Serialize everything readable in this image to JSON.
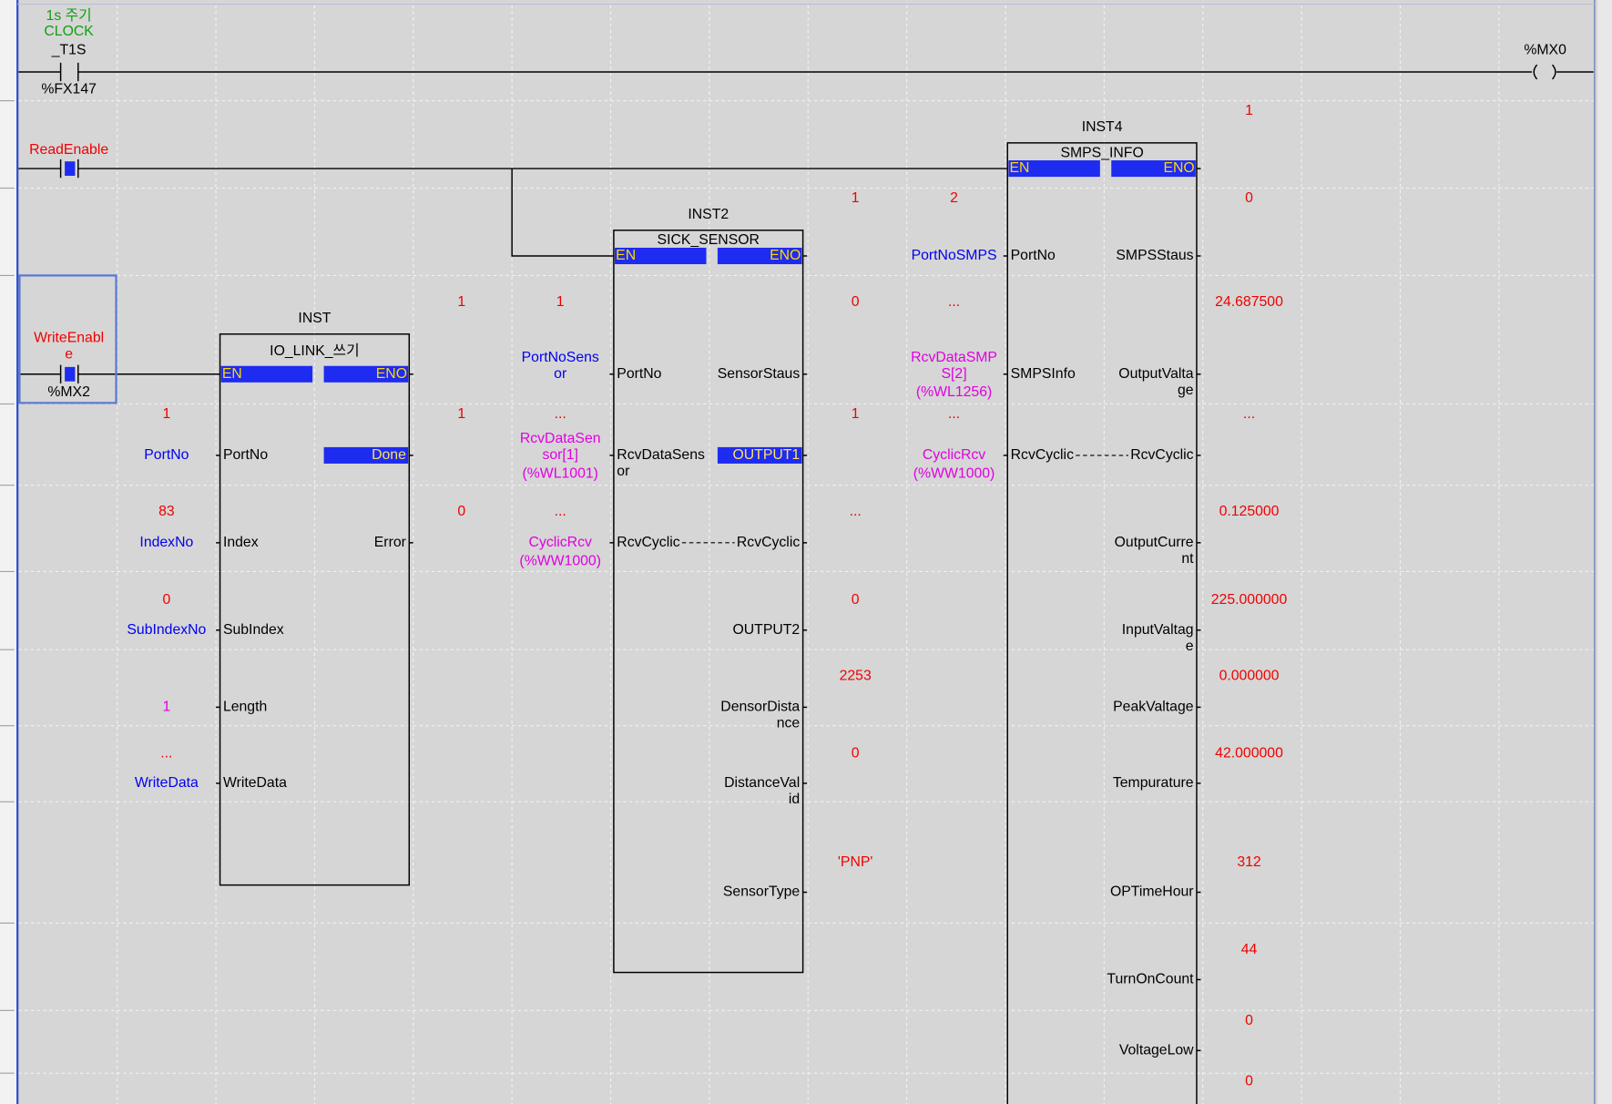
{
  "rung_clock": {
    "comment": [
      "1s 주기",
      "CLOCK"
    ],
    "contact": "_T1S",
    "address": "%FX147",
    "coil": "%MX0"
  },
  "rung_read": {
    "contact": "ReadEnable"
  },
  "rung_write": {
    "contact": [
      "WriteEnabl",
      "e"
    ],
    "address": "%MX2"
  },
  "blocks": [
    {
      "instance": "INST",
      "type": "IO_LINK_쓰기",
      "en": "EN",
      "eno": "ENO",
      "eno_monitor": "1",
      "inputs": [
        {
          "pin": [
            "PortNo"
          ],
          "operand": [
            "PortNo"
          ],
          "monitor": "1"
        },
        {
          "pin": [
            "Index"
          ],
          "operand": [
            "IndexNo"
          ],
          "monitor": "83"
        },
        {
          "pin": [
            "SubIndex"
          ],
          "operand": [
            "SubIndexNo"
          ],
          "monitor": "0"
        },
        {
          "pin": [
            "Length"
          ],
          "constant": "1"
        },
        {
          "pin": [
            "WriteData"
          ],
          "operand": [
            "WriteData"
          ],
          "monitor": "..."
        }
      ],
      "outputs": [
        {
          "pin": [
            "Done"
          ],
          "monitor": "1",
          "active": true
        },
        {
          "pin": [
            "Error"
          ],
          "monitor": "0"
        }
      ]
    },
    {
      "instance": "INST2",
      "type": "SICK_SENSOR",
      "en": "EN",
      "eno": "ENO",
      "eno_monitor": "1",
      "inputs": [
        {
          "pin": [
            "PortNo"
          ],
          "operand": [
            "PortNoSens",
            "or"
          ],
          "monitor": "1"
        },
        {
          "pin": [
            "RcvDataSens",
            "or"
          ],
          "operand": [
            "RcvDataSen",
            "sor[1]"
          ],
          "address": "(%WL1001)",
          "monitor": "..."
        },
        {
          "pin": [
            "RcvCyclic"
          ],
          "operand": [
            "CyclicRcv"
          ],
          "address": "(%WW1000)",
          "monitor": "..."
        }
      ],
      "outputs": [
        {
          "pin": [
            "SensorStaus"
          ],
          "monitor": "0"
        },
        {
          "pin": [
            "OUTPUT1"
          ],
          "monitor": "1",
          "active": true
        },
        {
          "pin": [
            "RcvCyclic"
          ],
          "monitor": "..."
        },
        {
          "pin": [
            "OUTPUT2"
          ],
          "monitor": "0"
        },
        {
          "pin": [
            "DensorDista",
            "nce"
          ],
          "monitor": "2253"
        },
        {
          "pin": [
            "DistanceVal",
            "id"
          ],
          "monitor": "0"
        },
        {
          "pin": [
            "SensorType"
          ],
          "monitor": "'PNP'"
        }
      ]
    },
    {
      "instance": "INST4",
      "type": "SMPS_INFO",
      "en": "EN",
      "eno": "ENO",
      "eno_monitor": "1",
      "inputs": [
        {
          "pin": [
            "PortNo"
          ],
          "operand": [
            "PortNoSMPS"
          ],
          "monitor": "2"
        },
        {
          "pin": [
            "SMPSInfo"
          ],
          "operand": [
            "RcvDataSMP",
            "S[2]"
          ],
          "address": "(%WL1256)",
          "monitor": "..."
        },
        {
          "pin": [
            "RcvCyclic"
          ],
          "operand": [
            "CyclicRcv"
          ],
          "address": "(%WW1000)",
          "monitor": "..."
        }
      ],
      "outputs": [
        {
          "pin": [
            "SMPSStaus"
          ],
          "monitor": "0"
        },
        {
          "pin": [
            "OutputValta",
            "ge"
          ],
          "monitor": "24.687500"
        },
        {
          "pin": [
            "RcvCyclic"
          ],
          "monitor": "..."
        },
        {
          "pin": [
            "OutputCurre",
            "nt"
          ],
          "monitor": "0.125000"
        },
        {
          "pin": [
            "InputValtag",
            "e"
          ],
          "monitor": "225.000000"
        },
        {
          "pin": [
            "PeakValtage"
          ],
          "monitor": "0.000000"
        },
        {
          "pin": [
            "Tempurature"
          ],
          "monitor": "42.000000"
        },
        {
          "pin": [
            "OPTimeHour"
          ],
          "monitor": "312"
        },
        {
          "pin": [
            "TurnOnCount"
          ],
          "monitor": "44"
        },
        {
          "pin": [
            "VoltageLow"
          ],
          "monitor": "0"
        },
        {
          "monitor": "0"
        }
      ]
    }
  ]
}
